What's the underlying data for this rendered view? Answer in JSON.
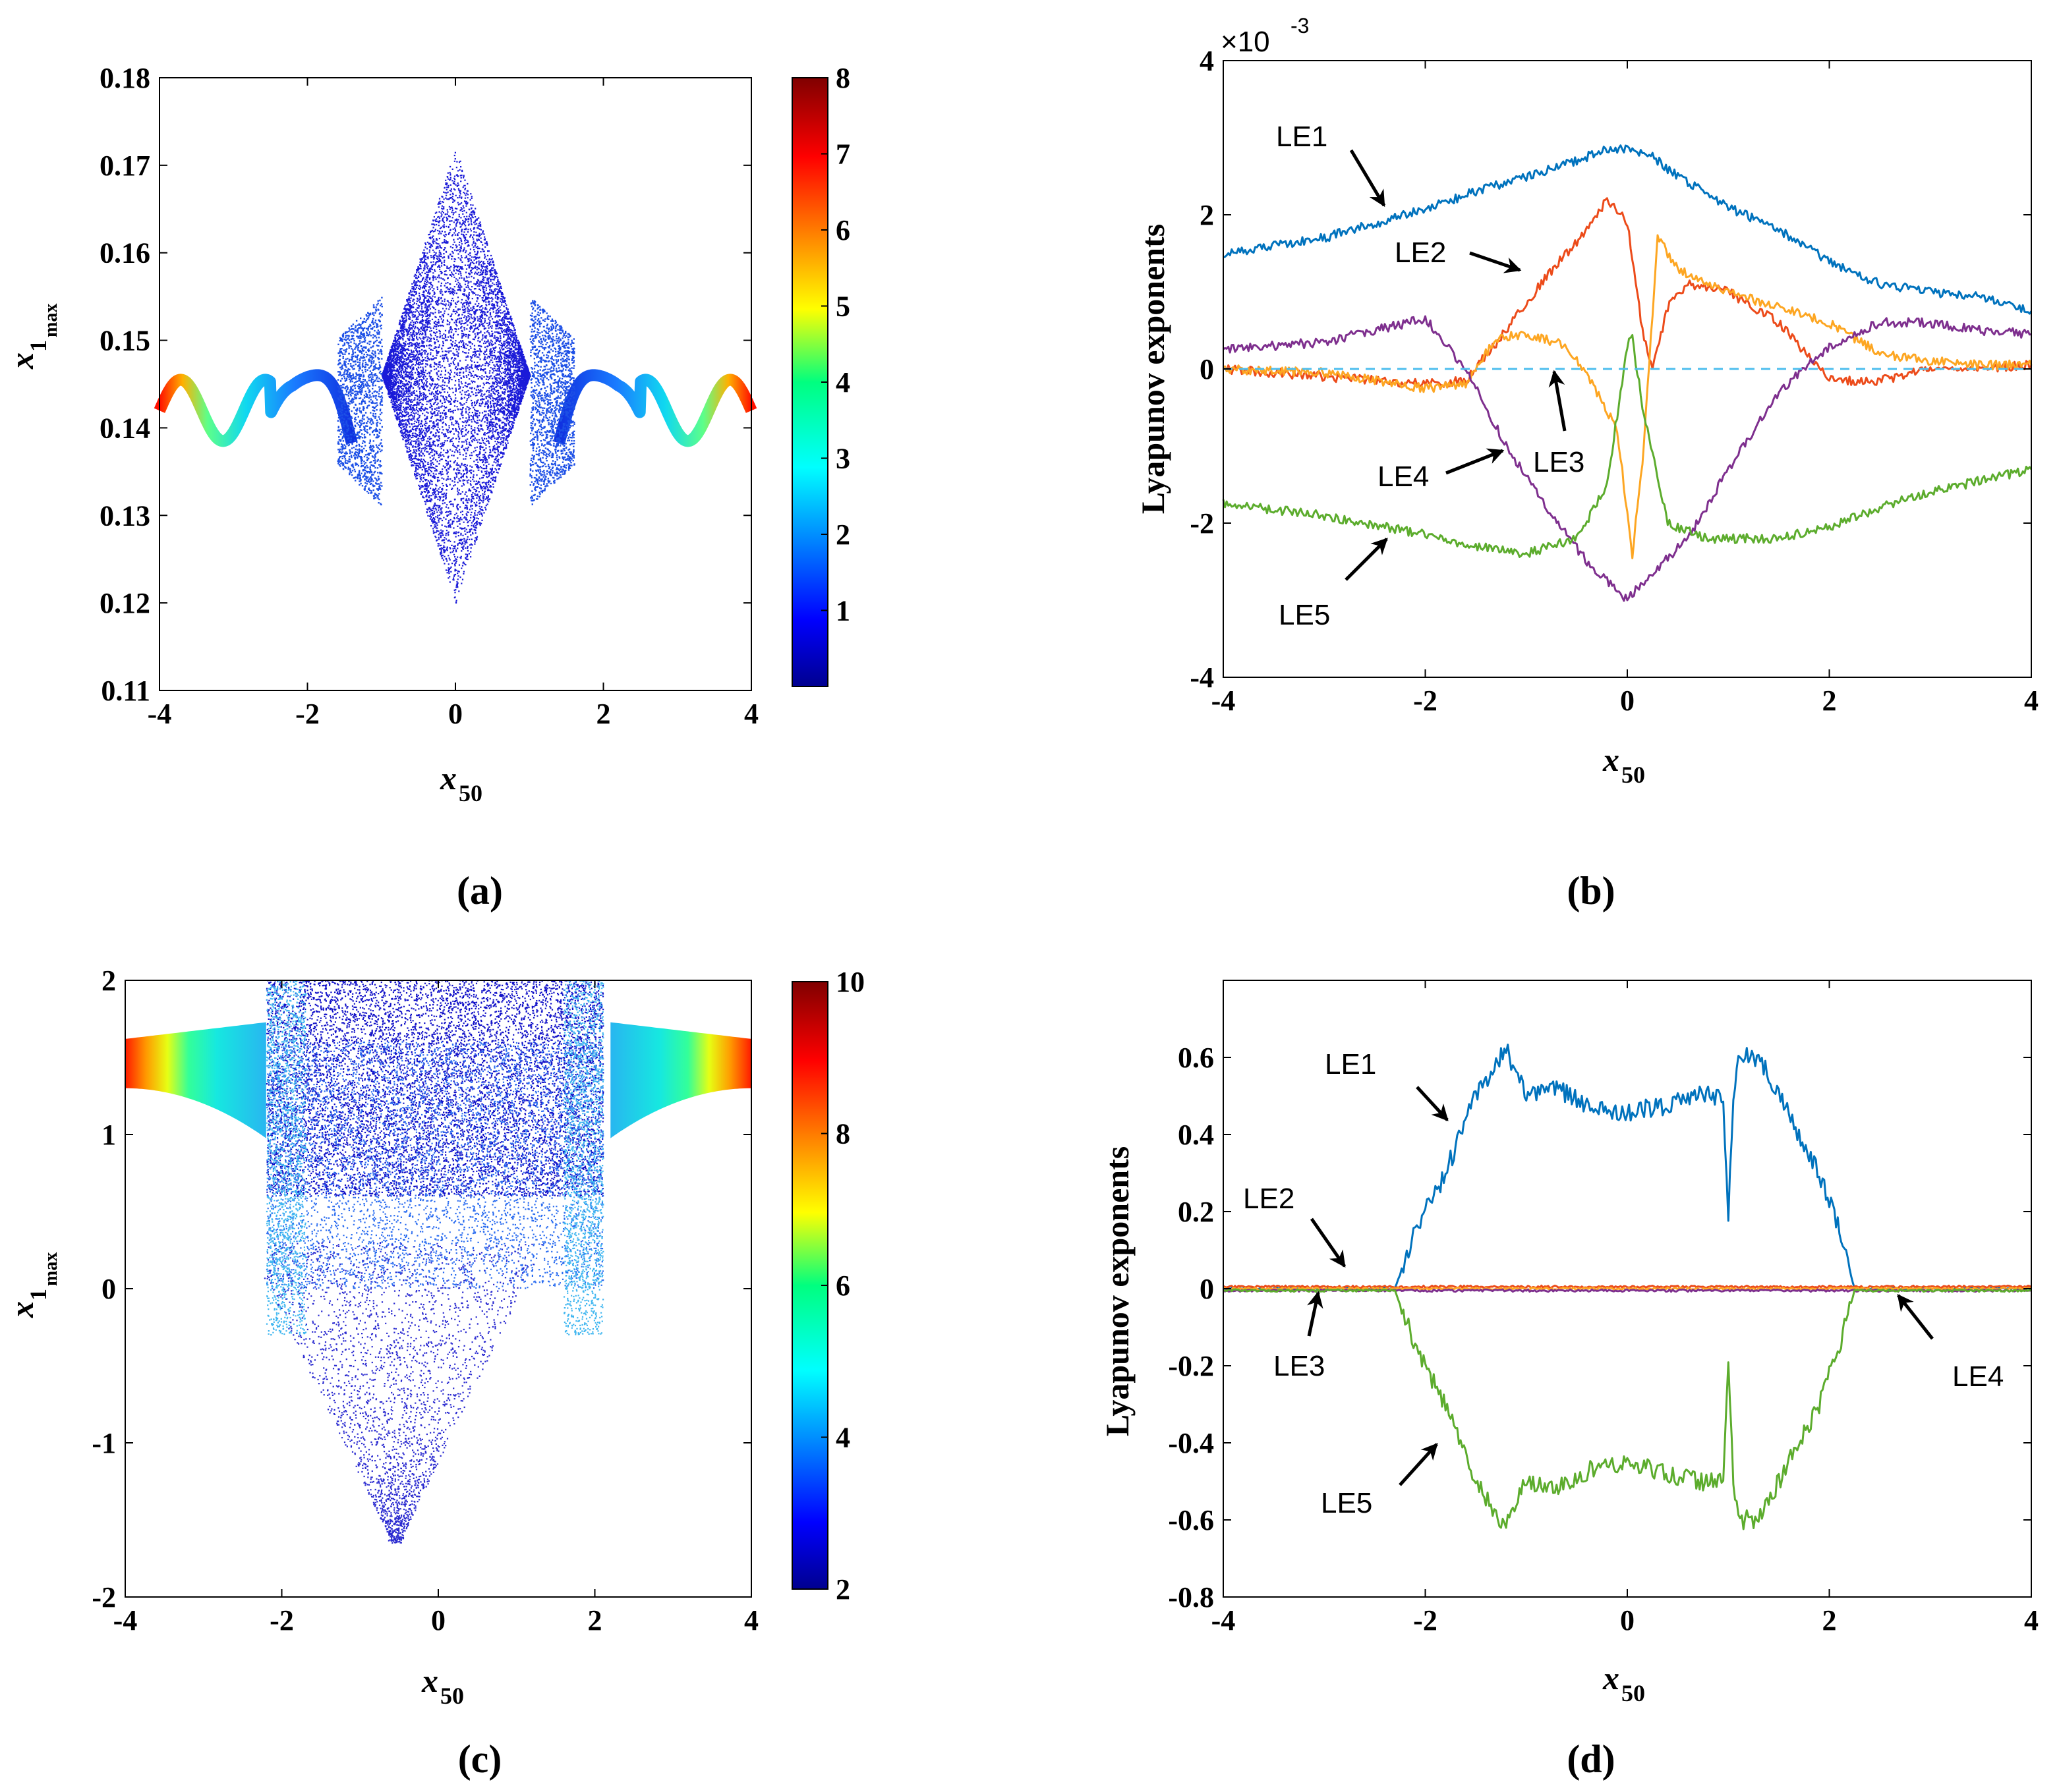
{
  "figure": {
    "captions": [
      "(a)",
      "(b)",
      "(c)",
      "(d)"
    ]
  },
  "chart_data": [
    {
      "type": "scatter",
      "panel": "(a)",
      "title": "",
      "xlabel": "x50",
      "ylabel": "x1max",
      "xlabel_main": "x",
      "xlabel_sub": "50",
      "ylabel_main": "x",
      "ylabel_sub1": "1",
      "ylabel_sub2": "max",
      "xlim": [
        -4,
        4
      ],
      "ylim": [
        0.11,
        0.18
      ],
      "xticks": [
        "-4",
        "-2",
        "0",
        "2",
        "4"
      ],
      "yticks": [
        "0.11",
        "0.12",
        "0.13",
        "0.14",
        "0.15",
        "0.16",
        "0.17",
        "0.18"
      ],
      "colorbar": {
        "min": 0,
        "max": 8,
        "ticks": [
          "1",
          "2",
          "3",
          "4",
          "5",
          "6",
          "7",
          "8"
        ]
      },
      "description_series": [
        {
          "name": "chaotic-core",
          "x_range": [
            -1.0,
            1.0
          ],
          "y_range": [
            0.12,
            0.172
          ],
          "color_value": 0.5
        },
        {
          "name": "periodic-branches",
          "x_range": [
            -4,
            4
          ],
          "y_center": 0.142,
          "amplitude": 0.004,
          "color_range": [
            2,
            8
          ]
        }
      ]
    },
    {
      "type": "line",
      "panel": "(b)",
      "title": "",
      "xlabel_main": "x",
      "xlabel_sub": "50",
      "ylabel": "Lyapunov exponents",
      "scale_label_prefix": "×10",
      "scale_label_exp": "-3",
      "xlim": [
        -4,
        4
      ],
      "ylim": [
        -4,
        4
      ],
      "xticks": [
        "-4",
        "-2",
        "0",
        "2",
        "4"
      ],
      "yticks": [
        "-4",
        "-2",
        "0",
        "2",
        "4"
      ],
      "series": [
        {
          "name": "LE1",
          "color": "#0072bd",
          "x": [
            -4,
            -3,
            -2.2,
            -1.5,
            -1,
            -0.5,
            -0.2,
            0,
            0.2,
            0.5,
            1,
            1.5,
            2,
            2.5,
            3,
            3.5,
            4
          ],
          "y": [
            1.5,
            1.7,
            2.0,
            2.3,
            2.5,
            2.7,
            2.85,
            2.85,
            2.8,
            2.5,
            2.1,
            1.8,
            1.4,
            1.1,
            1.0,
            0.95,
            0.75
          ]
        },
        {
          "name": "LE2",
          "color": "#ec4b1a",
          "x": [
            -4,
            -3,
            -2,
            -1.6,
            -1.2,
            -0.8,
            -0.4,
            -0.2,
            0,
            0.15,
            0.25,
            0.4,
            0.6,
            1,
            1.5,
            2,
            2.5,
            3,
            3.5,
            4
          ],
          "y": [
            0.0,
            -0.1,
            -0.2,
            -0.15,
            0.5,
            1.2,
            1.8,
            2.2,
            1.9,
            0.5,
            0.0,
            0.8,
            1.1,
            1.0,
            0.6,
            -0.15,
            -0.15,
            0.0,
            0.0,
            0.05
          ]
        },
        {
          "name": "LE3",
          "color": "#fda622",
          "x": [
            -4,
            -3,
            -2,
            -1.6,
            -1.3,
            -1,
            -0.6,
            -0.3,
            -0.1,
            0.05,
            0.15,
            0.3,
            0.5,
            1,
            1.5,
            2,
            2.5,
            3,
            3.5,
            4
          ],
          "y": [
            0.0,
            -0.05,
            -0.25,
            -0.2,
            0.4,
            0.45,
            0.3,
            -0.3,
            -0.8,
            -2.4,
            -1.2,
            1.7,
            1.3,
            1.0,
            0.8,
            0.6,
            0.2,
            0.1,
            0.05,
            0.05
          ]
        },
        {
          "name": "LE4",
          "color": "#7e2f8e",
          "x": [
            -4,
            -3,
            -2,
            -1.6,
            -1.2,
            -0.8,
            -0.4,
            0,
            0.2,
            0.6,
            1,
            1.5,
            2,
            2.5,
            3,
            3.5,
            4
          ],
          "y": [
            0.25,
            0.35,
            0.65,
            0.0,
            -1.0,
            -1.8,
            -2.5,
            -3.0,
            -2.7,
            -2.2,
            -1.3,
            -0.3,
            0.3,
            0.6,
            0.6,
            0.5,
            0.45
          ]
        },
        {
          "name": "LE5",
          "color": "#5cac2d",
          "x": [
            -4,
            -3,
            -2,
            -1.5,
            -1,
            -0.5,
            -0.2,
            0,
            0.05,
            0.15,
            0.4,
            0.8,
            1.5,
            2,
            2.5,
            3,
            3.5,
            4
          ],
          "y": [
            -1.75,
            -1.9,
            -2.15,
            -2.3,
            -2.4,
            -2.2,
            -1.5,
            0.3,
            0.4,
            -0.5,
            -2.0,
            -2.2,
            -2.2,
            -2.05,
            -1.8,
            -1.6,
            -1.45,
            -1.3
          ]
        },
        {
          "name": "zero-line",
          "color": "#4dbeee",
          "dashed": true,
          "x": [
            -4,
            4
          ],
          "y": [
            0,
            0
          ]
        }
      ],
      "annotations": [
        "LE1",
        "LE2",
        "LE3",
        "LE4",
        "LE5"
      ]
    },
    {
      "type": "scatter",
      "panel": "(c)",
      "title": "",
      "xlabel_main": "x",
      "xlabel_sub": "50",
      "ylabel_main": "x",
      "ylabel_sub1": "1",
      "ylabel_sub2": "max",
      "xlim": [
        -4,
        4
      ],
      "ylim": [
        -2,
        2
      ],
      "xticks": [
        "-4",
        "-2",
        "0",
        "2",
        "4"
      ],
      "yticks": [
        "-2",
        "-1",
        "0",
        "1",
        "2"
      ],
      "colorbar": {
        "min": 2,
        "max": 10,
        "ticks": [
          "2",
          "4",
          "6",
          "8",
          "10"
        ]
      },
      "description_series": [
        {
          "name": "chaotic-region",
          "x_range": [
            -2.2,
            2.1
          ],
          "y_range": [
            -1.65,
            2.0
          ],
          "color_range": [
            2,
            5
          ]
        },
        {
          "name": "side-bands",
          "x_range": [
            -4,
            4
          ],
          "y_range": [
            1.3,
            1.6
          ],
          "color_range": [
            4,
            10
          ]
        }
      ]
    },
    {
      "type": "line",
      "panel": "(d)",
      "title": "",
      "xlabel_main": "x",
      "xlabel_sub": "50",
      "ylabel": "Lyapunov exponents",
      "xlim": [
        -4,
        4
      ],
      "ylim": [
        -0.8,
        0.8
      ],
      "xticks": [
        "-4",
        "-2",
        "0",
        "2",
        "4"
      ],
      "yticks": [
        "-0.8",
        "-0.6",
        "-0.4",
        "-0.2",
        "0",
        "0.2",
        "0.4",
        "0.6"
      ],
      "series": [
        {
          "name": "LE1",
          "color": "#0072bd",
          "x": [
            -4,
            -2.3,
            -2.1,
            -1.8,
            -1.5,
            -1.2,
            -1.0,
            -0.7,
            -0.3,
            0,
            0.3,
            0.7,
            0.95,
            1.0,
            1.05,
            1.1,
            1.3,
            1.6,
            1.9,
            2.1,
            2.25,
            4
          ],
          "y": [
            0,
            0,
            0.15,
            0.3,
            0.5,
            0.62,
            0.5,
            0.52,
            0.46,
            0.46,
            0.47,
            0.5,
            0.5,
            0.18,
            0.5,
            0.6,
            0.6,
            0.45,
            0.3,
            0.15,
            0,
            0
          ]
        },
        {
          "name": "LE2",
          "color": "#ec4b1a",
          "x": [
            -4,
            4
          ],
          "y": [
            0.005,
            0.005
          ]
        },
        {
          "name": "LE3",
          "color": "#fda622",
          "x": [
            -4,
            4
          ],
          "y": [
            0.0,
            0.0
          ]
        },
        {
          "name": "LE4",
          "color": "#7e2f8e",
          "x": [
            -4,
            4
          ],
          "y": [
            -0.005,
            -0.005
          ]
        },
        {
          "name": "LE5",
          "color": "#5cac2d",
          "x": [
            -4,
            -2.3,
            -2.1,
            -1.8,
            -1.5,
            -1.2,
            -1.0,
            -0.7,
            -0.3,
            0,
            0.3,
            0.7,
            0.95,
            1.0,
            1.05,
            1.1,
            1.3,
            1.6,
            1.9,
            2.1,
            2.25,
            4
          ],
          "y": [
            -0.005,
            -0.005,
            -0.15,
            -0.3,
            -0.5,
            -0.62,
            -0.5,
            -0.52,
            -0.46,
            -0.46,
            -0.47,
            -0.5,
            -0.5,
            -0.2,
            -0.5,
            -0.6,
            -0.6,
            -0.45,
            -0.3,
            -0.15,
            -0.005,
            -0.005
          ]
        }
      ],
      "annotations": [
        "LE1",
        "LE2",
        "LE3",
        "LE4",
        "LE5"
      ]
    }
  ]
}
